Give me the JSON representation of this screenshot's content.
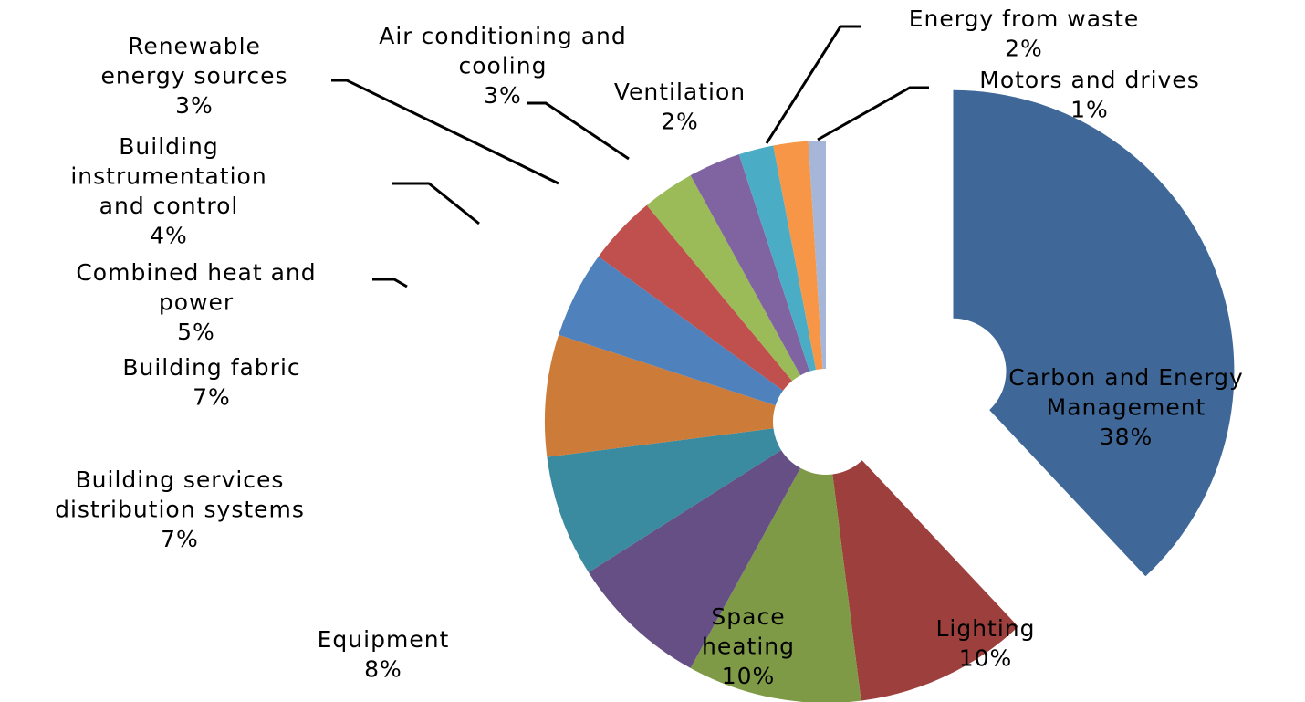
{
  "chart_data": {
    "type": "pie",
    "exploded": true,
    "legend": "none",
    "slices": [
      {
        "name": "Carbon and Energy Management",
        "value": 38,
        "label_lines": [
          "Carbon and Energy",
          "Management",
          "38%"
        ],
        "color": "#3F6899"
      },
      {
        "name": "Lighting",
        "value": 10,
        "label_lines": [
          "Lighting",
          "10%"
        ],
        "color": "#9C3F3D"
      },
      {
        "name": "Space heating",
        "value": 10,
        "label_lines": [
          "Space",
          "heating",
          "10%"
        ],
        "color": "#7E9A47"
      },
      {
        "name": "Equipment",
        "value": 8,
        "label_lines": [
          "Equipment",
          "8%"
        ],
        "color": "#664F84"
      },
      {
        "name": "Building services distribution systems",
        "value": 7,
        "label_lines": [
          "Building services",
          "distribution systems",
          "7%"
        ],
        "color": "#3A8AA0"
      },
      {
        "name": "Building fabric",
        "value": 7,
        "label_lines": [
          "Building fabric",
          "7%"
        ],
        "color": "#CC7B38"
      },
      {
        "name": "Combined heat and power",
        "value": 5,
        "label_lines": [
          "Combined heat and",
          "power",
          "5%"
        ],
        "color": "#4F81BD"
      },
      {
        "name": "Building instrumentation and control",
        "value": 4,
        "label_lines": [
          "Building",
          "instrumentation",
          "and control",
          "4%"
        ],
        "color": "#C0504D"
      },
      {
        "name": "Renewable energy sources",
        "value": 3,
        "label_lines": [
          "Renewable",
          "energy sources",
          "3%"
        ],
        "color": "#9BBB59"
      },
      {
        "name": "Air conditioning and cooling",
        "value": 3,
        "label_lines": [
          "Air conditioning and",
          "cooling",
          "3%"
        ],
        "color": "#8064A2"
      },
      {
        "name": "Ventilation",
        "value": 2,
        "label_lines": [
          "Ventilation",
          "2%"
        ],
        "color": "#4BACC6"
      },
      {
        "name": "Energy from waste",
        "value": 2,
        "label_lines": [
          "Energy from waste",
          "2%"
        ],
        "color": "#F79646"
      },
      {
        "name": "Motors and drives",
        "value": 1,
        "label_lines": [
          "Motors and drives",
          "1%"
        ],
        "color": "#A5B6D8"
      }
    ]
  }
}
